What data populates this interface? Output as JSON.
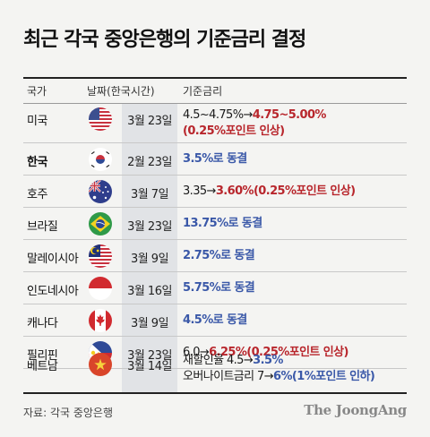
{
  "title": "최근 각국 중앙은행의 기준금리 결정",
  "headers": {
    "country": "국가",
    "date": "날짜(한국시간)",
    "rate": "기준금리"
  },
  "rows": [
    {
      "country": "미국",
      "flag": "us-flag-icon",
      "date": "3월 23일",
      "line1": {
        "before": "4.5~4.75%",
        "arrow": "→",
        "after": "4.75~5.00%"
      },
      "line2": "(0.25%포인트 인상)"
    },
    {
      "country": "한국",
      "flag": "korea-flag-icon",
      "date": "2월 23일",
      "decision": "3.5%로 동결"
    },
    {
      "country": "호주",
      "flag": "australia-flag-icon",
      "date": "3월 7일",
      "line1": {
        "before": "3.35",
        "arrow": "→",
        "after": "3.60%(0.25%포인트 인상)"
      }
    },
    {
      "country": "브라질",
      "flag": "brazil-flag-icon",
      "date": "3월 23일",
      "decision": "13.75%로 동결"
    },
    {
      "country": "말레이시아",
      "flag": "malaysia-flag-icon",
      "date": "3월 9일",
      "decision": "2.75%로 동결"
    },
    {
      "country": "인도네시아",
      "flag": "indonesia-flag-icon",
      "date": "3월 16일",
      "decision": "5.75%로 동결"
    },
    {
      "country": "캐나다",
      "flag": "canada-flag-icon",
      "date": "3월 9일",
      "decision": "4.5%로 동결"
    },
    {
      "country": "필리핀",
      "flag": "philippines-flag-icon",
      "date": "3월 23일",
      "line1": {
        "before": "6.0",
        "arrow": "→",
        "after": "6.25%(0.25%포인트 인상)"
      }
    },
    {
      "country": "베트남",
      "flag": "vietnam-flag-icon",
      "date": "3월 14일",
      "line1": {
        "before": "재할인율 4.5",
        "arrow": "→",
        "after": "3.5%"
      },
      "line2": {
        "before": "오버나이트금리 7",
        "arrow": "→",
        "after": "6%(1%포인트 인하)"
      }
    }
  ],
  "source": "자료: 각국 중앙은행",
  "brand": "The JoongAng",
  "colors": {
    "hike": "#b8262c",
    "hold": "#3a58a8",
    "cut": "#3a58a8",
    "date_column": "#e1e3e6"
  }
}
